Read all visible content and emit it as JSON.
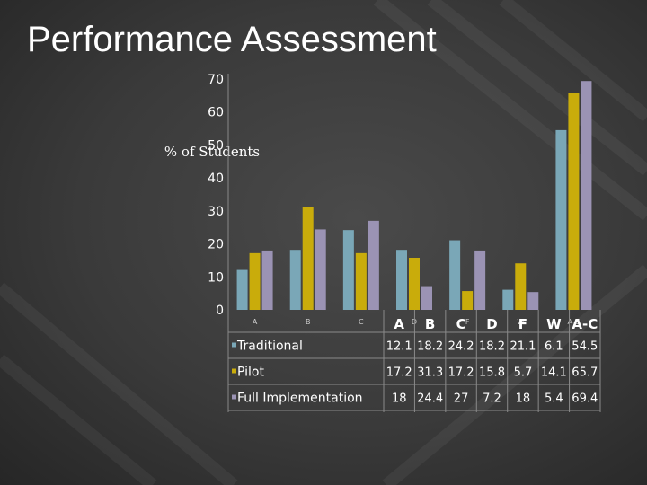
{
  "slide": {
    "title": "Performance Assessment"
  },
  "colors": {
    "Traditional": "#7aa7b7",
    "Pilot": "#c9ac0b",
    "Full Implementation": "#9b93b4",
    "text": "#ffffff"
  },
  "chart_data": {
    "type": "bar",
    "ylabel": "% of Students",
    "ylim": [
      0,
      70
    ],
    "yticks": [
      0,
      10,
      20,
      30,
      40,
      50,
      60,
      70
    ],
    "categories": [
      "A",
      "B",
      "C",
      "D",
      "F",
      "W",
      "A-C"
    ],
    "axis_category_labels": [
      "A",
      "B",
      "C",
      "D",
      "F",
      "W",
      "A-C"
    ],
    "series": [
      {
        "name": "Traditional",
        "values": [
          12.1,
          18.2,
          24.2,
          18.2,
          21.1,
          6.1,
          54.5
        ],
        "labels": [
          "12.1",
          "18.2",
          "24.2",
          "18.2",
          "21.1",
          "6.1",
          "54.5"
        ]
      },
      {
        "name": "Pilot",
        "values": [
          17.2,
          31.3,
          17.2,
          15.8,
          5.7,
          14.1,
          65.7
        ],
        "labels": [
          "17.2",
          "31.3",
          "17.2",
          "15.8",
          "5.7",
          "14.1",
          "65.7"
        ]
      },
      {
        "name": "Full Implementation",
        "values": [
          18,
          24.4,
          27,
          7.2,
          18,
          5.4,
          69.4
        ],
        "labels": [
          "18",
          "24.4",
          "27",
          "7.2",
          "18",
          "5.4",
          "69.4"
        ]
      }
    ],
    "grid": false,
    "legend": "data-table"
  }
}
